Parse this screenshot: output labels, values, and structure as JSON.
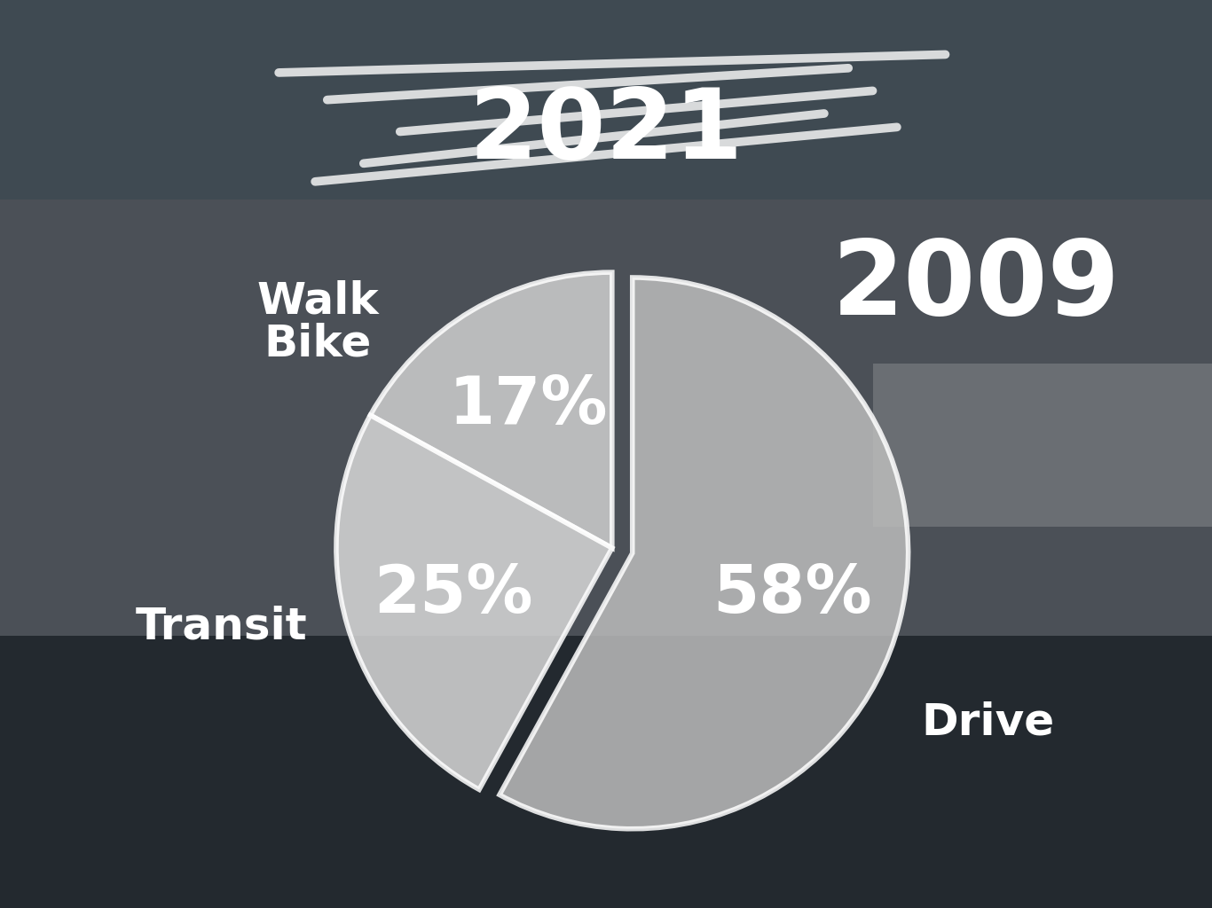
{
  "chart_data": {
    "type": "pie",
    "title": "2009",
    "annotations": [
      "2021"
    ],
    "categories": [
      "Walk\nBike",
      "Transit",
      "Drive"
    ],
    "values": [
      17,
      25,
      58
    ],
    "value_labels": [
      "17%",
      "25%",
      "58%"
    ],
    "colors": [
      "#cfcfcf",
      "#d8d8d8",
      "#bcbcbc"
    ],
    "data_labels": true
  }
}
